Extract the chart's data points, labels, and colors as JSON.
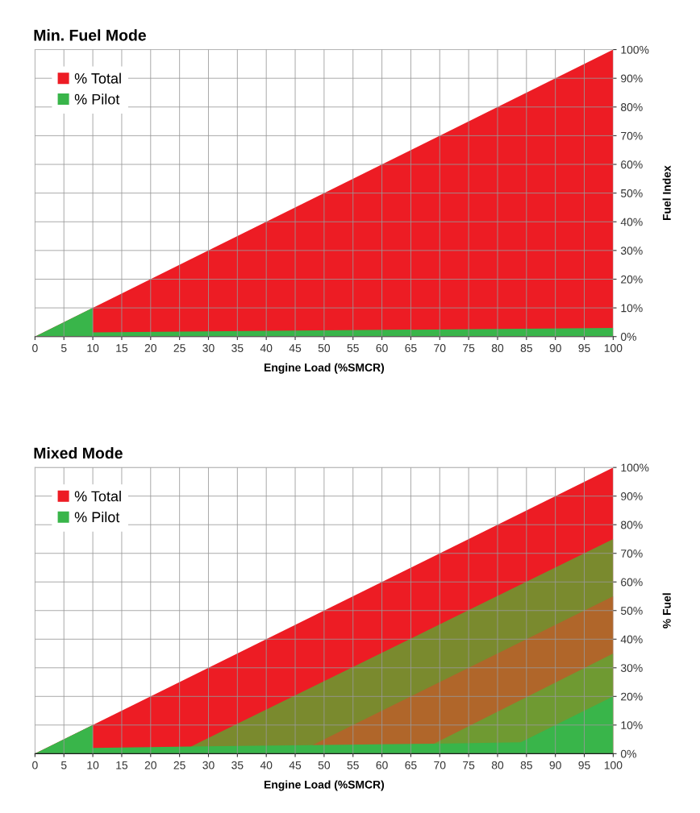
{
  "chart_data": [
    {
      "type": "area",
      "title": "Min. Fuel Mode",
      "xlabel": "Engine Load (%SMCR)",
      "ylabel": "Fuel Index",
      "series": [
        {
          "name": "% Total",
          "color": "#ed1c24",
          "x": [
            0,
            100
          ],
          "values": [
            0,
            100
          ]
        },
        {
          "name": "% Pilot",
          "color": "#39b54a",
          "x": [
            0,
            10,
            10,
            100
          ],
          "values": [
            0,
            10,
            1.5,
            3
          ]
        }
      ],
      "xlim": [
        0,
        100
      ],
      "xticks": [
        0,
        5,
        10,
        15,
        20,
        25,
        30,
        35,
        40,
        45,
        50,
        55,
        60,
        65,
        70,
        75,
        80,
        85,
        90,
        95,
        100
      ],
      "ylim": [
        0,
        100
      ],
      "yticks": [
        {
          "value": 0,
          "label": "0%"
        },
        {
          "value": 10,
          "label": "10%"
        },
        {
          "value": 20,
          "label": "20%"
        },
        {
          "value": 30,
          "label": "30%"
        },
        {
          "value": 40,
          "label": "40%"
        },
        {
          "value": 50,
          "label": "50%"
        },
        {
          "value": 60,
          "label": "60%"
        },
        {
          "value": 70,
          "label": "70%"
        },
        {
          "value": 80,
          "label": "80%"
        },
        {
          "value": 90,
          "label": "90%"
        },
        {
          "value": 100,
          "label": "100%"
        }
      ],
      "grid": true,
      "legend": "top left"
    },
    {
      "type": "area",
      "title": "Mixed Mode",
      "xlabel": "Engine Load (%SMCR)",
      "ylabel": "% Fuel",
      "series": [
        {
          "name": "% Total",
          "color": "#ed1c24",
          "x": [
            0,
            100
          ],
          "values": [
            0,
            100
          ]
        },
        {
          "color": "#7a8a2e",
          "x": [
            27,
            100
          ],
          "values": [
            2.5,
            75
          ]
        },
        {
          "color": "#b0662a",
          "x": [
            48,
            100
          ],
          "values": [
            3,
            55
          ]
        },
        {
          "color": "#6f9a32",
          "x": [
            69,
            100
          ],
          "values": [
            3.5,
            35
          ]
        },
        {
          "name": "% Pilot",
          "color": "#39b54a",
          "x": [
            0,
            10,
            10,
            27,
            48,
            69,
            84,
            100
          ],
          "values": [
            0,
            10,
            2,
            2.5,
            3,
            3.5,
            4,
            20
          ]
        }
      ],
      "xlim": [
        0,
        100
      ],
      "xticks": [
        0,
        5,
        10,
        15,
        20,
        25,
        30,
        35,
        40,
        45,
        50,
        55,
        60,
        65,
        70,
        75,
        80,
        85,
        90,
        95,
        100
      ],
      "ylim": [
        0,
        100
      ],
      "yticks": [
        {
          "value": 0,
          "label": "0%"
        },
        {
          "value": 10,
          "label": "10%"
        },
        {
          "value": 20,
          "label": "20%"
        },
        {
          "value": 30,
          "label": "30%"
        },
        {
          "value": 40,
          "label": "40%"
        },
        {
          "value": 50,
          "label": "50%"
        },
        {
          "value": 60,
          "label": "60%"
        },
        {
          "value": 70,
          "label": "70%"
        },
        {
          "value": 80,
          "label": "80%"
        },
        {
          "value": 90,
          "label": "90%"
        },
        {
          "value": 100,
          "label": "100%"
        }
      ],
      "grid": true,
      "legend": "top left"
    }
  ]
}
